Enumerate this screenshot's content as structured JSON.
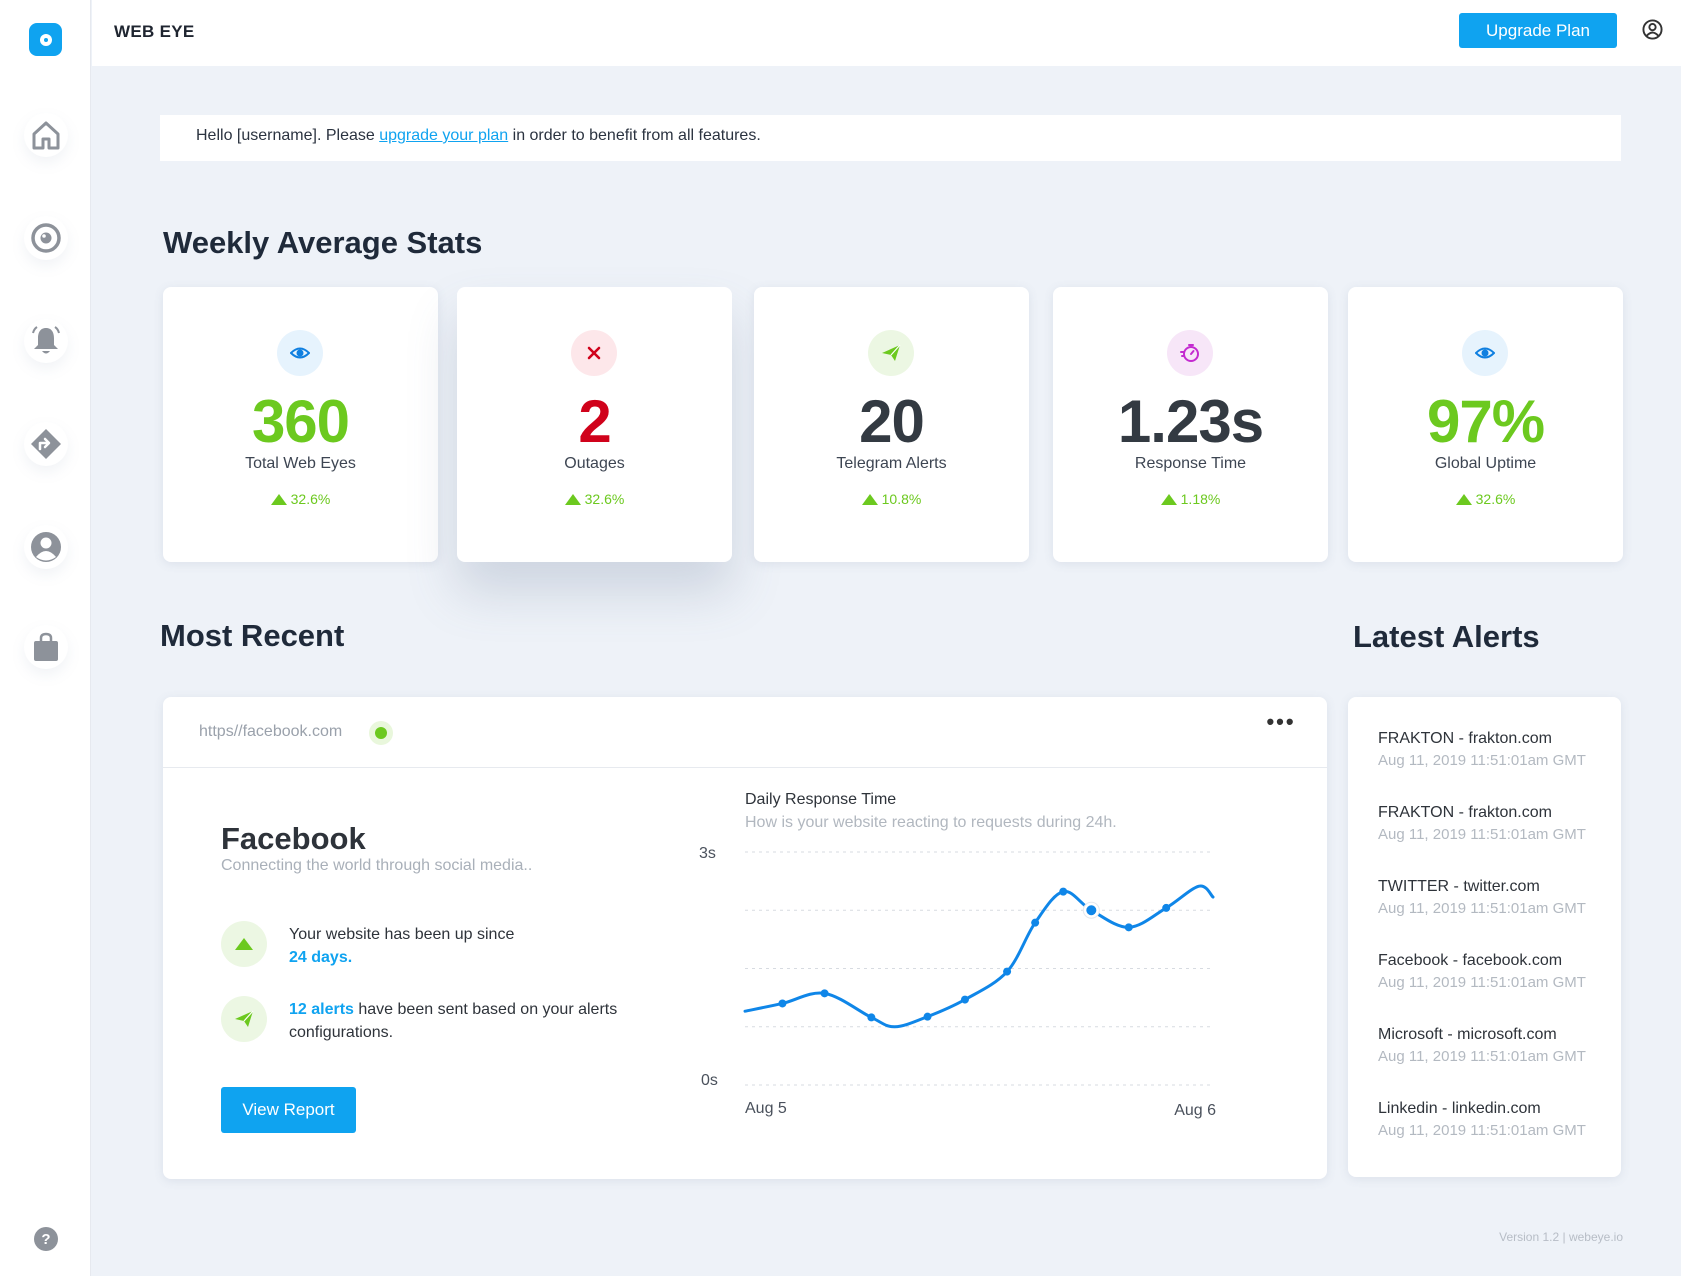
{
  "app": {
    "brand": "WEB EYE",
    "upgrade_label": "Upgrade Plan"
  },
  "sidebar": {
    "items": [
      {
        "name": "home-icon"
      },
      {
        "name": "eye-icon"
      },
      {
        "name": "bell-icon"
      },
      {
        "name": "route-icon"
      },
      {
        "name": "user-icon"
      },
      {
        "name": "bag-icon"
      }
    ],
    "help": "?"
  },
  "notice": {
    "before": "Hello [username]. Please ",
    "link": "upgrade your plan",
    "after": " in order to benefit from all features."
  },
  "stats": {
    "title": "Weekly Average Stats",
    "cards": [
      {
        "value": "360",
        "label": "Total Web Eyes",
        "change": "32.6%",
        "color": "#6cc91f",
        "icon": "eye-icon",
        "icon_bg": "#e6f3fd",
        "icon_color": "#0f7fe0"
      },
      {
        "value": "2",
        "label": "Outages",
        "change": "32.6%",
        "color": "#d0021b",
        "icon": "close-icon",
        "icon_bg": "#fde7ea",
        "icon_color": "#d0021b"
      },
      {
        "value": "20",
        "label": "Telegram Alerts",
        "change": "10.8%",
        "color": "#333a42",
        "icon": "send-icon",
        "icon_bg": "#ecf7e3",
        "icon_color": "#6cc91f"
      },
      {
        "value": "1.23s",
        "label": "Response Time",
        "change": "1.18%",
        "color": "#333a42",
        "icon": "stopwatch-icon",
        "icon_bg": "#f7e6f8",
        "icon_color": "#c42bd0"
      },
      {
        "value": "97%",
        "label": "Global Uptime",
        "change": "32.6%",
        "color": "#6cc91f",
        "icon": "eye-icon",
        "icon_bg": "#e6f3fd",
        "icon_color": "#0f7fe0"
      }
    ]
  },
  "recent": {
    "title": "Most Recent",
    "url": "https//facebook.com",
    "more": "•••",
    "site_name": "Facebook",
    "site_desc": "Connecting the world through social media..",
    "uptime_text": "Your website has been up since",
    "uptime_value": "24 days.",
    "alerts_value": "12 alerts",
    "alerts_text": " have been sent based on your alerts configurations.",
    "view_report": "View Report"
  },
  "chart_data": {
    "type": "line",
    "title": "Daily Response Time",
    "subtitle": "How is your website reacting to requests during 24h.",
    "xlabel": "",
    "ylabel": "",
    "y_tick_labels": [
      "3s",
      "0s"
    ],
    "x_tick_labels": [
      "Aug 5",
      "Aug 6"
    ],
    "ylim": [
      0,
      3
    ],
    "grid": true,
    "series": [
      {
        "color": "#0f86e8",
        "x": [
          0,
          0.08,
          0.17,
          0.27,
          0.32,
          0.39,
          0.47,
          0.56,
          0.62,
          0.68,
          0.74,
          0.82,
          0.9,
          0.97,
          1.0
        ],
        "y": [
          0.95,
          1.05,
          1.18,
          0.87,
          0.75,
          0.88,
          1.1,
          1.46,
          2.09,
          2.49,
          2.25,
          2.03,
          2.28,
          2.56,
          2.42
        ]
      }
    ],
    "markers_at": [
      1,
      2,
      3,
      5,
      6,
      7,
      8,
      9,
      10,
      11,
      12
    ]
  },
  "alerts": {
    "title": "Latest Alerts",
    "items": [
      {
        "name": "FRAKTON - frakton.com",
        "time": "Aug 11, 2019 11:51:01am GMT"
      },
      {
        "name": "FRAKTON - frakton.com",
        "time": "Aug 11, 2019 11:51:01am GMT"
      },
      {
        "name": "TWITTER - twitter.com",
        "time": "Aug 11, 2019 11:51:01am GMT"
      },
      {
        "name": "Facebook - facebook.com",
        "time": "Aug 11, 2019 11:51:01am GMT"
      },
      {
        "name": "Microsoft - microsoft.com",
        "time": "Aug 11, 2019 11:51:01am GMT"
      },
      {
        "name": "Linkedin - linkedin.com",
        "time": "Aug 11, 2019 11:51:01am GMT"
      }
    ]
  },
  "footer": "Version 1.2 | webeye.io"
}
